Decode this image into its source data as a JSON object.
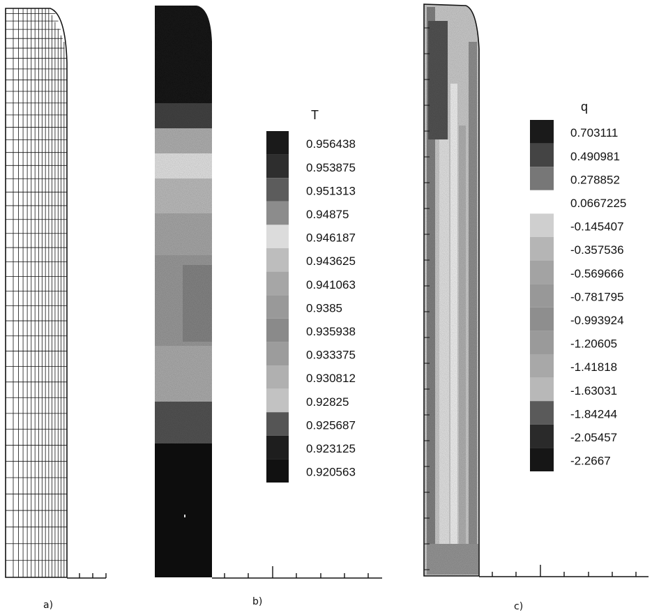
{
  "panels": [
    {
      "id": "a",
      "label": "a)"
    },
    {
      "id": "b",
      "label": "b)",
      "legend_title": "T",
      "legend_values": [
        "0.956438",
        "0.953875",
        "0.951313",
        "0.94875",
        "0.946187",
        "0.943625",
        "0.941063",
        "0.9385",
        "0.935938",
        "0.933375",
        "0.930812",
        "0.92825",
        "0.925687",
        "0.923125",
        "0.920563"
      ]
    },
    {
      "id": "c",
      "label": "c)",
      "legend_title": "q",
      "legend_values": [
        "0.703111",
        "0.490981",
        "0.278852",
        "0.0667225",
        "-0.145407",
        "-0.357536",
        "-0.569666",
        "-0.781795",
        "-0.993924",
        "-1.20605",
        "-1.41818",
        "-1.63031",
        "-1.84244",
        "-2.05457",
        "-2.2667"
      ]
    }
  ],
  "colors": {
    "ink": "#111111",
    "legend_gray_levels_T": [
      "#1a1a1a",
      "#2e2e2e",
      "#5c5c5c",
      "#8c8c8c",
      "#dcdcdc",
      "#bdbdbd",
      "#a6a6a6",
      "#999999",
      "#8a8a8a",
      "#9c9c9c",
      "#b0b0b0",
      "#c2c2c2",
      "#555555",
      "#1e1e1e",
      "#111111"
    ],
    "legend_gray_levels_q": [
      "#1a1a1a",
      "#444444",
      "#777777",
      "#ffffff",
      "#cfcfcf",
      "#b5b5b5",
      "#a3a3a3",
      "#989898",
      "#8e8e8e",
      "#9a9a9a",
      "#a8a8a8",
      "#b8b8b8",
      "#5a5a5a",
      "#2a2a2a",
      "#161616"
    ]
  }
}
